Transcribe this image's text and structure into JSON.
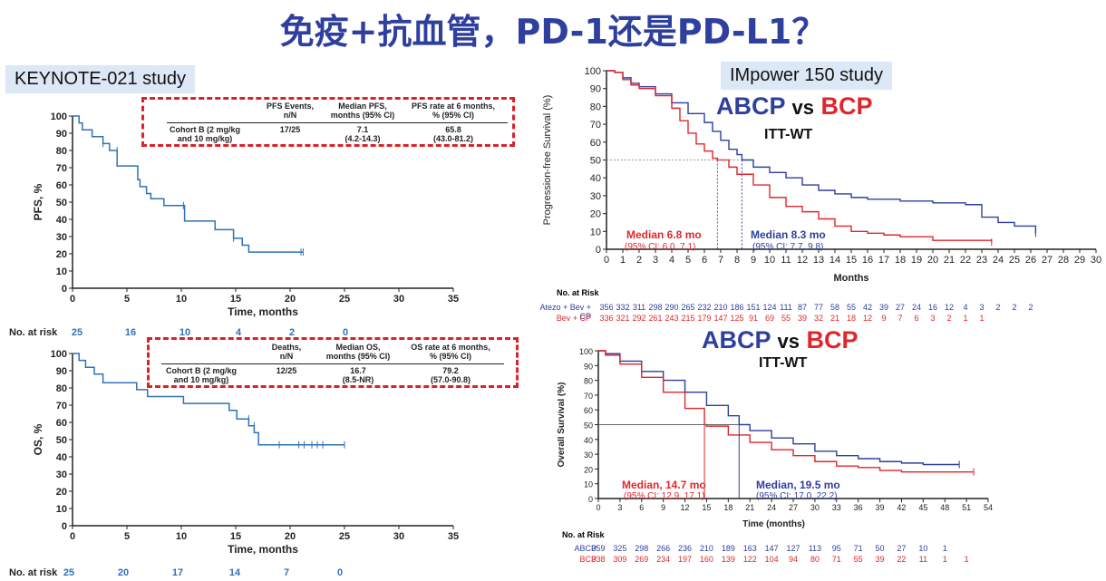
{
  "title": "免疫+抗血管，PD-1还是PD-L1？",
  "left_label": "KEYNOTE-021 study",
  "right_label": "IMpower 150 study",
  "colors": {
    "blue": "#2f72b8",
    "abcp": "#2e3f9e",
    "bcp": "#e0262c"
  },
  "pfs_table": {
    "headers": [
      "PFS Events,\nn/N",
      "Median PFS,\nmonths (95% CI)",
      "PFS rate at 6 months,\n% (95% CI)"
    ],
    "row_label": "Cohort B (2 mg/kg\nand 10 mg/kg)",
    "values": [
      "17/25",
      "7.1\n(4.2-14.3)",
      "65.8\n(43.0-81.2)"
    ]
  },
  "os_table": {
    "headers": [
      "Deaths,\nn/N",
      "Median OS,\nmonths (95% CI)",
      "OS rate at 6 months,\n% (95% CI)"
    ],
    "row_label": "Cohort B (2 mg/kg\nand 10 mg/kg)",
    "values": [
      "12/25",
      "16.7\n(8.5-NR)",
      "79.2\n(57.0-90.8)"
    ]
  },
  "kn_risk": {
    "label": "No. at risk",
    "pfs": [
      "25",
      "16",
      "10",
      "4",
      "2",
      "0"
    ],
    "os": [
      "25",
      "20",
      "17",
      "14",
      "7",
      "0"
    ]
  },
  "im_pfs": {
    "heading_a": "ABCP",
    "heading_vs": "vs",
    "heading_b": "BCP",
    "subheading": "ITT-WT",
    "median_bcp": "Median 6.8 mo",
    "ci_bcp": "(95% CI: 6.0, 7.1)",
    "median_abcp": "Median 8.3 mo",
    "ci_abcp": "(95% CI: 7.7, 9.8)",
    "risk_label": "No. at Risk",
    "risk_names": [
      "Atezo + Bev + CP",
      "Bev + CP"
    ],
    "risk_abcp": [
      "356",
      "332",
      "311",
      "298",
      "290",
      "265",
      "232",
      "210",
      "186",
      "151",
      "124",
      "111",
      "87",
      "77",
      "58",
      "55",
      "42",
      "39",
      "27",
      "24",
      "16",
      "12",
      "4",
      "3",
      "2",
      "2",
      "2"
    ],
    "risk_bcp": [
      "336",
      "321",
      "292",
      "261",
      "243",
      "215",
      "179",
      "147",
      "125",
      "91",
      "69",
      "55",
      "39",
      "32",
      "21",
      "18",
      "12",
      "9",
      "7",
      "6",
      "3",
      "2",
      "1",
      "1"
    ]
  },
  "im_os": {
    "heading_a": "ABCP",
    "heading_vs": "vs",
    "heading_b": "BCP",
    "subheading": "ITT-WT",
    "median_bcp": "Median, 14.7 mo",
    "ci_bcp": "(95% CI: 12.9, 17.1)",
    "median_abcp": "Median, 19.5 mo",
    "ci_abcp": "(95% CI: 17.0, 22.2)",
    "risk_label": "No. at Risk",
    "risk_names": [
      "ABCP",
      "BCP"
    ],
    "risk_abcp": [
      "359",
      "325",
      "298",
      "266",
      "236",
      "210",
      "189",
      "163",
      "147",
      "127",
      "113",
      "95",
      "71",
      "50",
      "27",
      "10",
      "1"
    ],
    "risk_bcp": [
      "338",
      "309",
      "269",
      "234",
      "197",
      "160",
      "139",
      "122",
      "104",
      "94",
      "80",
      "71",
      "55",
      "39",
      "22",
      "11",
      "1",
      "1"
    ]
  },
  "chart_data": [
    {
      "type": "line",
      "name": "KEYNOTE-021 PFS",
      "xlabel": "Time, months",
      "ylabel": "PFS, %",
      "xlim": [
        0,
        35
      ],
      "ylim": [
        0,
        100
      ],
      "xticks": [
        0,
        5,
        10,
        15,
        20,
        25,
        30,
        35
      ],
      "yticks": [
        0,
        10,
        20,
        30,
        40,
        50,
        60,
        70,
        80,
        90,
        100
      ],
      "series": [
        {
          "x": [
            0,
            0.6,
            0.9,
            1.8,
            2.8,
            3.4,
            4.1,
            5.6,
            6,
            6.2,
            6.8,
            7.2,
            8.4,
            10.3,
            13.1,
            14.8,
            15.3,
            15.6,
            16.2,
            21,
            21.2
          ],
          "y": [
            100,
            96,
            92,
            88,
            84,
            80,
            71,
            71,
            63,
            59,
            55,
            52,
            48,
            39,
            34,
            29,
            29,
            25,
            21,
            21,
            21
          ]
        }
      ]
    },
    {
      "type": "line",
      "name": "KEYNOTE-021 OS",
      "xlabel": "Time, months",
      "ylabel": "OS, %",
      "xlim": [
        0,
        35
      ],
      "ylim": [
        0,
        100
      ],
      "xticks": [
        0,
        5,
        10,
        15,
        20,
        25,
        30,
        35
      ],
      "yticks": [
        0,
        10,
        20,
        30,
        40,
        50,
        60,
        70,
        80,
        90,
        100
      ],
      "series": [
        {
          "x": [
            0,
            0.6,
            1.2,
            2,
            2.8,
            5.3,
            5.9,
            6.9,
            8.2,
            10.2,
            13.1,
            14.4,
            15.1,
            16.2,
            16.7,
            17.1,
            25
          ],
          "y": [
            100,
            96,
            92,
            88,
            83,
            83,
            79,
            75,
            75,
            71,
            71,
            67,
            62,
            58,
            54,
            47,
            47
          ]
        }
      ]
    },
    {
      "type": "line",
      "name": "IMpower150 PFS",
      "xlabel": "Months",
      "ylabel": "Progression-free Survival (%)",
      "xlim": [
        0,
        30
      ],
      "ylim": [
        0,
        100
      ],
      "xticks": [
        0,
        1,
        2,
        3,
        4,
        5,
        6,
        7,
        8,
        9,
        10,
        11,
        12,
        13,
        14,
        15,
        16,
        17,
        18,
        19,
        20,
        21,
        22,
        23,
        24,
        25,
        26,
        27,
        28,
        29,
        30
      ],
      "yticks": [
        0,
        10,
        20,
        30,
        40,
        50,
        60,
        70,
        80,
        90,
        100
      ],
      "series": [
        {
          "name": "ABCP",
          "x": [
            0,
            0.5,
            1,
            1.5,
            2,
            3,
            4,
            5,
            6,
            6.5,
            7,
            7.5,
            8,
            8.3,
            9,
            10,
            11,
            12,
            13,
            14,
            15,
            16,
            17,
            18,
            20,
            22,
            23,
            24,
            25,
            26.3
          ],
          "y": [
            100,
            99,
            96,
            93,
            91,
            87,
            82,
            76,
            71,
            66,
            61,
            56,
            53,
            50,
            46,
            43,
            40,
            36,
            33,
            31,
            29,
            28,
            28,
            27,
            26,
            25,
            18,
            15,
            13,
            9
          ]
        },
        {
          "name": "BCP",
          "x": [
            0,
            0.5,
            1,
            1.5,
            2,
            3,
            4,
            4.5,
            5,
            5.5,
            6,
            6.5,
            6.8,
            7.5,
            8,
            9,
            10,
            11,
            12,
            13,
            14,
            15,
            16,
            17,
            18,
            20,
            22,
            23.6
          ],
          "y": [
            100,
            99,
            95,
            92,
            90,
            86,
            79,
            72,
            65,
            59,
            55,
            51,
            50,
            46,
            42,
            36,
            29,
            24,
            21,
            17,
            13,
            10,
            9,
            8,
            7,
            5,
            5,
            4
          ]
        }
      ]
    },
    {
      "type": "line",
      "name": "IMpower150 OS",
      "xlabel": "Time (months)",
      "ylabel": "Overall Survival (%)",
      "xlim": [
        0,
        54
      ],
      "ylim": [
        0,
        100
      ],
      "xticks": [
        0,
        3,
        6,
        9,
        12,
        15,
        18,
        21,
        24,
        27,
        30,
        33,
        36,
        39,
        42,
        45,
        48,
        51,
        54
      ],
      "yticks": [
        0,
        10,
        20,
        30,
        40,
        50,
        60,
        70,
        80,
        90,
        100
      ],
      "series": [
        {
          "name": "ABCP",
          "x": [
            0,
            1,
            3,
            6,
            9,
            12,
            15,
            18,
            19.5,
            21,
            24,
            27,
            30,
            33,
            36,
            39,
            42,
            45,
            48,
            50
          ],
          "y": [
            100,
            98,
            93,
            86,
            80,
            72,
            63,
            56,
            50,
            46,
            41,
            37,
            32,
            29,
            27,
            25,
            24,
            23,
            23,
            23
          ]
        },
        {
          "name": "BCP",
          "x": [
            0,
            1,
            3,
            6,
            9,
            12,
            14.7,
            15,
            18,
            21,
            24,
            27,
            30,
            33,
            36,
            39,
            42,
            45,
            48,
            51,
            52
          ],
          "y": [
            100,
            97,
            91,
            82,
            72,
            61,
            50,
            49,
            43,
            38,
            33,
            29,
            25,
            22,
            21,
            19,
            18,
            18,
            18,
            18,
            18
          ]
        }
      ]
    }
  ]
}
